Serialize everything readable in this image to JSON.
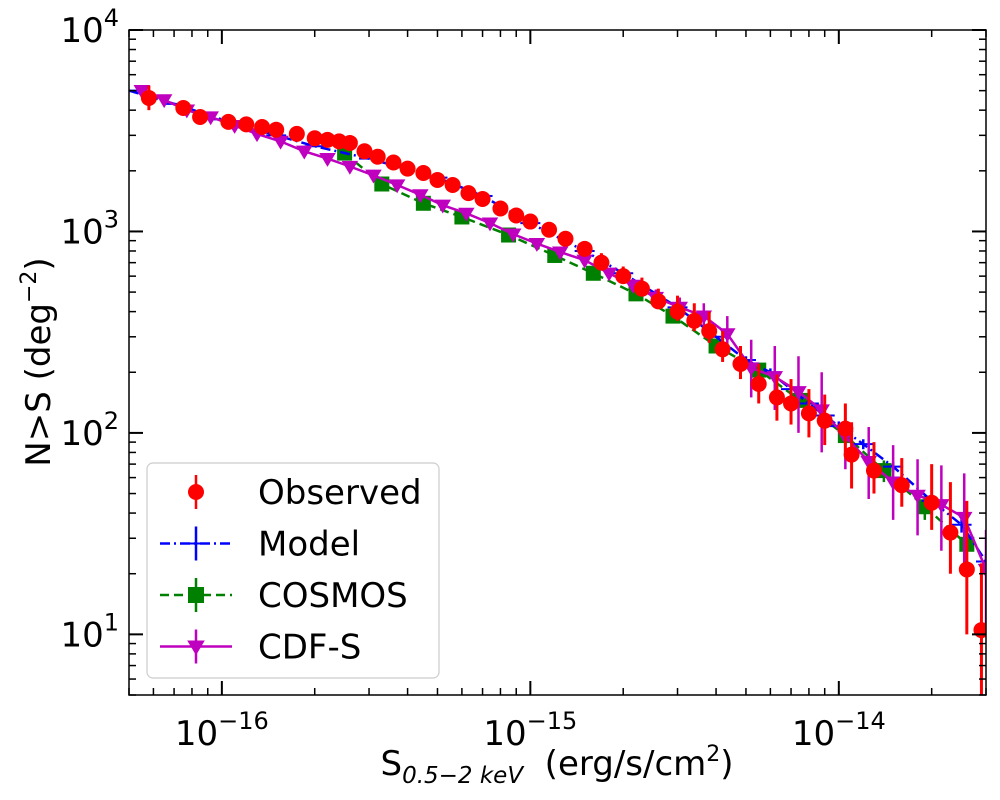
{
  "chart_data": {
    "type": "scatter",
    "xscale": "log",
    "yscale": "log",
    "xlim": [
      5e-17,
      3e-14
    ],
    "ylim": [
      5,
      10000
    ],
    "xlabel": {
      "main": "S",
      "sub": "0.5−2 keV",
      "units": "  (erg/s/cm",
      "units_sup": "2",
      "units_end": ")"
    },
    "ylabel": {
      "main": "N>S (deg",
      "sup": "−2",
      "end": ")"
    },
    "x_ticks": [
      {
        "value": 1e-16,
        "base": "10",
        "exp": "−16"
      },
      {
        "value": 1e-15,
        "base": "10",
        "exp": "−15"
      },
      {
        "value": 1e-14,
        "base": "10",
        "exp": "−14"
      }
    ],
    "y_ticks": [
      {
        "value": 10,
        "base": "10",
        "exp": "1"
      },
      {
        "value": 100,
        "base": "10",
        "exp": "2"
      },
      {
        "value": 1000,
        "base": "10",
        "exp": "3"
      },
      {
        "value": 10000,
        "base": "10",
        "exp": "4"
      }
    ],
    "legend_position": "lower-left",
    "series": [
      {
        "name": "Observed",
        "color": "#ff0000",
        "marker": "circle",
        "line": "none",
        "x": [
          5.8e-17,
          7.5e-17,
          8.5e-17,
          1.05e-16,
          1.2e-16,
          1.35e-16,
          1.5e-16,
          1.75e-16,
          2e-16,
          2.2e-16,
          2.4e-16,
          2.6e-16,
          2.9e-16,
          3.2e-16,
          3.6e-16,
          4e-16,
          4.5e-16,
          5e-16,
          5.6e-16,
          6.3e-16,
          7e-16,
          8e-16,
          9e-16,
          1e-15,
          1.15e-15,
          1.3e-15,
          1.5e-15,
          1.7e-15,
          2e-15,
          2.3e-15,
          2.6e-15,
          3e-15,
          3.4e-15,
          3.8e-15,
          4.2e-15,
          4.8e-15,
          5.5e-15,
          6.3e-15,
          7e-15,
          8e-15,
          9e-15,
          1.05e-14,
          1.1e-14,
          1.3e-14,
          1.6e-14,
          2e-14,
          2.3e-14,
          2.6e-14,
          2.9e-14
        ],
        "y": [
          4600,
          4100,
          3700,
          3500,
          3400,
          3300,
          3200,
          3050,
          2900,
          2850,
          2800,
          2750,
          2500,
          2350,
          2200,
          2050,
          1950,
          1800,
          1700,
          1550,
          1450,
          1300,
          1200,
          1120,
          1020,
          920,
          820,
          700,
          600,
          520,
          450,
          400,
          360,
          320,
          260,
          220,
          175,
          150,
          140,
          125,
          115,
          105,
          78,
          65,
          55,
          45,
          32,
          21,
          10.5
        ],
        "yerr_lo": [
          600,
          300,
          250,
          200,
          180,
          150,
          140,
          130,
          120,
          110,
          100,
          100,
          90,
          80,
          80,
          70,
          70,
          60,
          60,
          55,
          50,
          50,
          45,
          45,
          40,
          40,
          40,
          35,
          35,
          35,
          35,
          40,
          40,
          40,
          35,
          35,
          35,
          35,
          30,
          30,
          28,
          25,
          25,
          15,
          12,
          12,
          12,
          11,
          5.5
        ],
        "yerr_hi": [
          700,
          350,
          280,
          220,
          200,
          170,
          150,
          140,
          130,
          120,
          110,
          110,
          100,
          90,
          90,
          80,
          75,
          65,
          60,
          60,
          55,
          55,
          50,
          50,
          55,
          60,
          70,
          80,
          70,
          70,
          70,
          80,
          80,
          80,
          60,
          50,
          45,
          45,
          45,
          40,
          40,
          35,
          35,
          25,
          20,
          25,
          25,
          25,
          12
        ]
      },
      {
        "name": "Model",
        "color": "#0000ff",
        "marker": "plus",
        "line": "dashdot",
        "x": [
          5e-17,
          7e-17,
          1e-16,
          1.5e-16,
          2e-16,
          3e-16,
          5e-16,
          7e-16,
          1e-15,
          1.5e-15,
          2e-15,
          3e-15,
          4e-15,
          5e-15,
          6e-15,
          7e-15,
          8e-15,
          9e-15,
          1e-14,
          1.2e-14,
          1.5e-14,
          2e-14,
          2.5e-14,
          3e-14
        ],
        "y": [
          5000,
          4300,
          3600,
          3000,
          2650,
          2300,
          1850,
          1500,
          1100,
          800,
          620,
          420,
          300,
          230,
          200,
          165,
          140,
          122,
          108,
          88,
          68,
          46,
          35,
          23
        ],
        "yerr_lo": [
          50,
          40,
          35,
          30,
          25,
          22,
          18,
          15,
          11,
          8,
          6,
          4,
          3,
          10,
          9,
          8,
          7,
          6,
          6,
          5,
          4,
          3,
          3,
          2
        ],
        "yerr_hi": [
          50,
          40,
          35,
          30,
          25,
          22,
          18,
          15,
          11,
          8,
          6,
          4,
          3,
          10,
          9,
          8,
          7,
          6,
          6,
          5,
          4,
          3,
          3,
          2
        ]
      },
      {
        "name": "COSMOS",
        "color": "#008000",
        "marker": "square",
        "line": "dashed",
        "x": [
          2.5e-16,
          3.3e-16,
          4.5e-16,
          6e-16,
          8.5e-16,
          1.2e-15,
          1.6e-15,
          2.2e-15,
          2.9e-15,
          4e-15,
          5.5e-15,
          7.5e-15,
          1.05e-14,
          1.4e-14,
          1.9e-14,
          2.6e-14
        ],
        "y": [
          2450,
          1720,
          1380,
          1180,
          960,
          760,
          620,
          490,
          380,
          270,
          205,
          145,
          97,
          65,
          43,
          28
        ],
        "yerr_lo": [
          60,
          40,
          35,
          30,
          25,
          20,
          18,
          15,
          12,
          10,
          10,
          8,
          10,
          8,
          6,
          5
        ],
        "yerr_hi": [
          60,
          40,
          35,
          30,
          25,
          20,
          18,
          15,
          12,
          10,
          10,
          8,
          10,
          8,
          6,
          5
        ]
      },
      {
        "name": "CDF-S",
        "color": "#bf00bf",
        "marker": "triangle-down",
        "line": "solid",
        "x": [
          5.5e-17,
          6.5e-17,
          7.7e-17,
          9.2e-17,
          1.1e-16,
          1.3e-16,
          1.55e-16,
          1.85e-16,
          2.2e-16,
          2.6e-16,
          3.1e-16,
          3.7e-16,
          4.4e-16,
          5.2e-16,
          6.2e-16,
          7.4e-16,
          8.8e-16,
          1.05e-15,
          1.25e-15,
          1.5e-15,
          1.8e-15,
          2.15e-15,
          2.55e-15,
          3.05e-15,
          3.65e-15,
          4.35e-15,
          5.2e-15,
          6.2e-15,
          7.4e-15,
          8.8e-15,
          1.05e-14,
          1.25e-14,
          1.5e-14,
          1.8e-14,
          2.15e-14,
          2.55e-14,
          3e-14
        ],
        "y": [
          5000,
          4500,
          4000,
          3700,
          3350,
          3050,
          2800,
          2500,
          2300,
          2100,
          1900,
          1700,
          1520,
          1350,
          1230,
          1100,
          970,
          870,
          790,
          720,
          620,
          540,
          470,
          420,
          380,
          310,
          210,
          190,
          160,
          130,
          96,
          72,
          57,
          49,
          44,
          38,
          21
        ],
        "yerr_lo": [
          150,
          120,
          100,
          90,
          80,
          70,
          60,
          55,
          50,
          45,
          40,
          38,
          35,
          32,
          30,
          28,
          25,
          25,
          25,
          30,
          30,
          30,
          35,
          40,
          45,
          50,
          60,
          60,
          60,
          50,
          30,
          25,
          20,
          18,
          18,
          18,
          10
        ],
        "yerr_hi": [
          200,
          150,
          120,
          100,
          90,
          80,
          70,
          60,
          55,
          50,
          45,
          40,
          38,
          35,
          32,
          30,
          28,
          28,
          30,
          35,
          40,
          40,
          45,
          50,
          60,
          70,
          80,
          80,
          80,
          70,
          40,
          35,
          30,
          25,
          25,
          25,
          12
        ]
      }
    ]
  }
}
